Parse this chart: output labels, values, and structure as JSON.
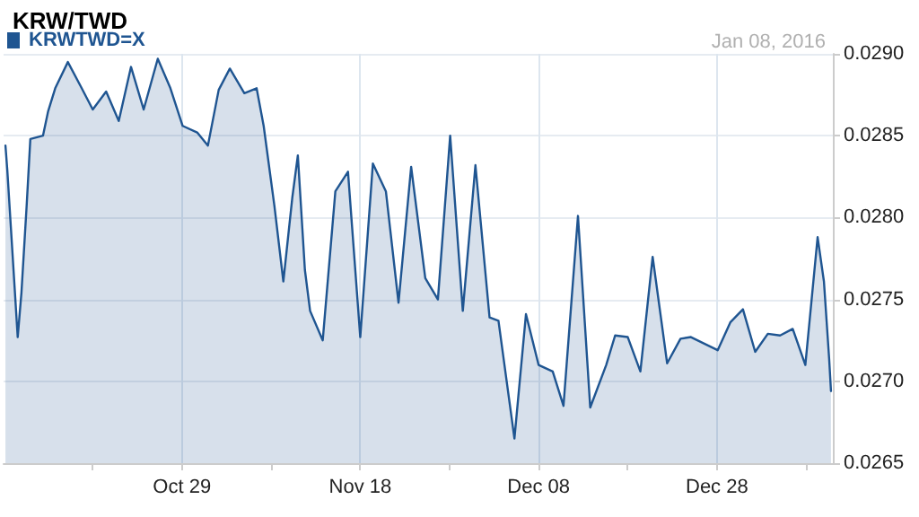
{
  "chart_data": {
    "type": "area",
    "title": "KRW/TWD",
    "annotations": [
      "Jan 08, 2016"
    ],
    "x": [
      "2015-10-09T05:00",
      "2015-10-09T10:00",
      "2015-10-10T14:00",
      "2015-10-11T00:00",
      "2015-10-11T14:00",
      "2015-10-12T00:00",
      "2015-10-13T10:00",
      "2015-10-14T00:00",
      "2015-10-14T19:00",
      "2015-10-16T05:00",
      "2015-10-17T16:00",
      "2015-10-19T00:00",
      "2015-10-20T12:00",
      "2015-10-21T22:00",
      "2015-10-23T07:00",
      "2015-10-24T17:00",
      "2015-10-26T07:00",
      "2015-10-27T17:00",
      "2015-10-29T02:00",
      "2015-10-30T17:00",
      "2015-10-31T22:00",
      "2015-11-02T03:00",
      "2015-11-03T09:00",
      "2015-11-05T00:00",
      "2015-11-06T09:00",
      "2015-11-07T04:00",
      "2015-11-08T09:00",
      "2015-11-09T09:00",
      "2015-11-10T09:00",
      "2015-11-11T00:00",
      "2015-11-11T19:00",
      "2015-11-12T09:00",
      "2015-11-13T19:00",
      "2015-11-15T05:00",
      "2015-11-16T15:00",
      "2015-11-18T00:00",
      "2015-11-19T10:00",
      "2015-11-20T21:00",
      "2015-11-22T07:00",
      "2015-11-23T17:00",
      "2015-11-25T07:00",
      "2015-11-26T17:00",
      "2015-11-28T02:00",
      "2015-11-29T12:00",
      "2015-11-30T22:00",
      "2015-12-02T12:00",
      "2015-12-03T12:00",
      "2015-12-05T07:00",
      "2015-12-06T14:00",
      "2015-12-08T00:00",
      "2015-12-09T14:00",
      "2015-12-10T19:00",
      "2015-12-12T10:00",
      "2015-12-13T19:00",
      "2015-12-15T14:00",
      "2015-12-16T14:00",
      "2015-12-18T00:00",
      "2015-12-19T10:00",
      "2015-12-20T19:00",
      "2015-12-22T10:00",
      "2015-12-23T22:00",
      "2015-12-25T02:00",
      "2015-12-28T02:00",
      "2015-12-29T12:00",
      "2015-12-30T22:00",
      "2016-01-01T07:00",
      "2016-01-02T17:00",
      "2016-01-04T02:00",
      "2016-01-05T12:00",
      "2016-01-06T22:00",
      "2016-01-08T07:00",
      "2016-01-09T00:00",
      "2016-01-09T14:00",
      "2016-01-09T19:00"
    ],
    "series": [
      {
        "name": "KRWTWD=X",
        "color": "#1f5591",
        "values": [
          0.02844,
          0.02829,
          0.02727,
          0.02754,
          0.02807,
          0.02848,
          0.0285,
          0.02865,
          0.02879,
          0.02895,
          0.0288,
          0.02866,
          0.02877,
          0.02859,
          0.02892,
          0.02866,
          0.02897,
          0.02879,
          0.02856,
          0.02852,
          0.02844,
          0.02878,
          0.02891,
          0.02876,
          0.02879,
          0.02856,
          0.02807,
          0.02761,
          0.02812,
          0.02838,
          0.02768,
          0.02743,
          0.02725,
          0.02816,
          0.02828,
          0.02727,
          0.02833,
          0.02816,
          0.02748,
          0.02831,
          0.02763,
          0.0275,
          0.0285,
          0.02743,
          0.02832,
          0.02739,
          0.02737,
          0.02665,
          0.02741,
          0.0271,
          0.02706,
          0.02685,
          0.02801,
          0.02684,
          0.0271,
          0.02728,
          0.02727,
          0.02706,
          0.02776,
          0.02711,
          0.02726,
          0.02727,
          0.02719,
          0.02736,
          0.02744,
          0.02718,
          0.02729,
          0.02728,
          0.02732,
          0.0271,
          0.02788,
          0.02761,
          0.02714,
          0.02694
        ]
      }
    ],
    "xlim": [
      "2015-10-09",
      "2016-01-10"
    ],
    "xticks": [
      {
        "value": "2015-10-19",
        "label": null
      },
      {
        "value": "2015-10-29",
        "label": "Oct 29"
      },
      {
        "value": "2015-11-08",
        "label": null
      },
      {
        "value": "2015-11-18",
        "label": "Nov 18"
      },
      {
        "value": "2015-11-28",
        "label": null
      },
      {
        "value": "2015-12-08",
        "label": "Dec 08"
      },
      {
        "value": "2015-12-18",
        "label": null
      },
      {
        "value": "2015-12-28",
        "label": "Dec 28"
      },
      {
        "value": "2016-01-07",
        "label": null
      }
    ],
    "ylim": [
      0.0265,
      0.029
    ],
    "yticks": [
      {
        "value": 0.0265,
        "label": "0.0265"
      },
      {
        "value": 0.027,
        "label": "0.0270"
      },
      {
        "value": 0.0275,
        "label": "0.0275"
      },
      {
        "value": 0.028,
        "label": "0.0280"
      },
      {
        "value": 0.0285,
        "label": "0.0285"
      },
      {
        "value": 0.029,
        "label": "0.0290"
      }
    ],
    "grid": true,
    "legend": "top left",
    "marker": "none",
    "line_style": "solid"
  }
}
